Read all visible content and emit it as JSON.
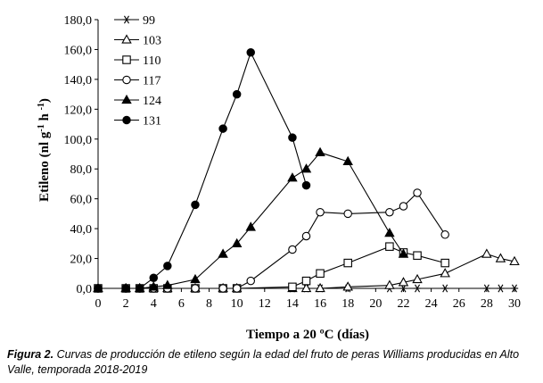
{
  "chart_data": {
    "type": "line",
    "xlabel": "Tiempo a 20 ºC (días)",
    "ylabel": "Etileno (nl g-1 h -1)",
    "xlim": [
      0,
      30
    ],
    "ylim": [
      0,
      180
    ],
    "x_ticks": [
      "0",
      "2",
      "4",
      "6",
      "8",
      "10",
      "12",
      "14",
      "16",
      "18",
      "20",
      "22",
      "24",
      "26",
      "28",
      "30"
    ],
    "y_ticks": [
      "0,0",
      "20,0",
      "40,0",
      "60,0",
      "80,0",
      "100,0",
      "120,0",
      "140,0",
      "160,0",
      "180,0"
    ],
    "legend_position": "top-left",
    "series": [
      {
        "name": "99",
        "marker": "asterisk",
        "x": [
          0,
          2,
          3,
          4,
          5,
          7,
          9,
          10,
          14,
          15,
          16,
          18,
          21,
          22,
          23,
          25,
          28,
          29,
          30
        ],
        "y": [
          0,
          0,
          0,
          0,
          0,
          0,
          0,
          0,
          0,
          0,
          0,
          0,
          0,
          0,
          0,
          0,
          0,
          0,
          0
        ]
      },
      {
        "name": "103",
        "marker": "triangle-open",
        "x": [
          0,
          2,
          3,
          4,
          5,
          7,
          9,
          10,
          14,
          15,
          16,
          18,
          21,
          22,
          23,
          25,
          28,
          29,
          30
        ],
        "y": [
          0,
          0,
          0,
          0,
          0,
          0,
          0,
          0,
          0,
          0,
          0,
          1,
          2,
          4,
          6,
          10,
          23,
          20,
          18
        ]
      },
      {
        "name": "110",
        "marker": "square-open",
        "x": [
          0,
          2,
          3,
          4,
          5,
          7,
          9,
          10,
          14,
          15,
          16,
          18,
          21,
          22,
          23,
          25
        ],
        "y": [
          0,
          0,
          0,
          0,
          0,
          0,
          0,
          0,
          1,
          5,
          10,
          17,
          28,
          24,
          22,
          17
        ]
      },
      {
        "name": "117",
        "marker": "circle-open",
        "x": [
          0,
          2,
          3,
          4,
          5,
          7,
          9,
          10,
          11,
          14,
          15,
          16,
          18,
          21,
          22,
          23,
          25
        ],
        "y": [
          0,
          0,
          0,
          0,
          0,
          0,
          0,
          0,
          5,
          26,
          35,
          51,
          50,
          51,
          55,
          64,
          36
        ]
      },
      {
        "name": "124",
        "marker": "triangle-filled",
        "x": [
          0,
          2,
          3,
          4,
          5,
          7,
          9,
          10,
          11,
          14,
          15,
          16,
          18,
          21,
          22
        ],
        "y": [
          0,
          0,
          0,
          1,
          2,
          6,
          23,
          30,
          41,
          74,
          80,
          91,
          85,
          37,
          23
        ]
      },
      {
        "name": "131",
        "marker": "circle-filled",
        "x": [
          0,
          2,
          3,
          4,
          5,
          7,
          9,
          10,
          11,
          14,
          15
        ],
        "y": [
          0,
          0,
          0,
          7,
          15,
          56,
          107,
          130,
          158,
          101,
          69
        ]
      }
    ]
  },
  "caption": {
    "label": "Figura 2.",
    "text": " Curvas de producción de etileno según la edad del fruto de peras Williams producidas en Alto Valle, temporada 2018-2019"
  }
}
